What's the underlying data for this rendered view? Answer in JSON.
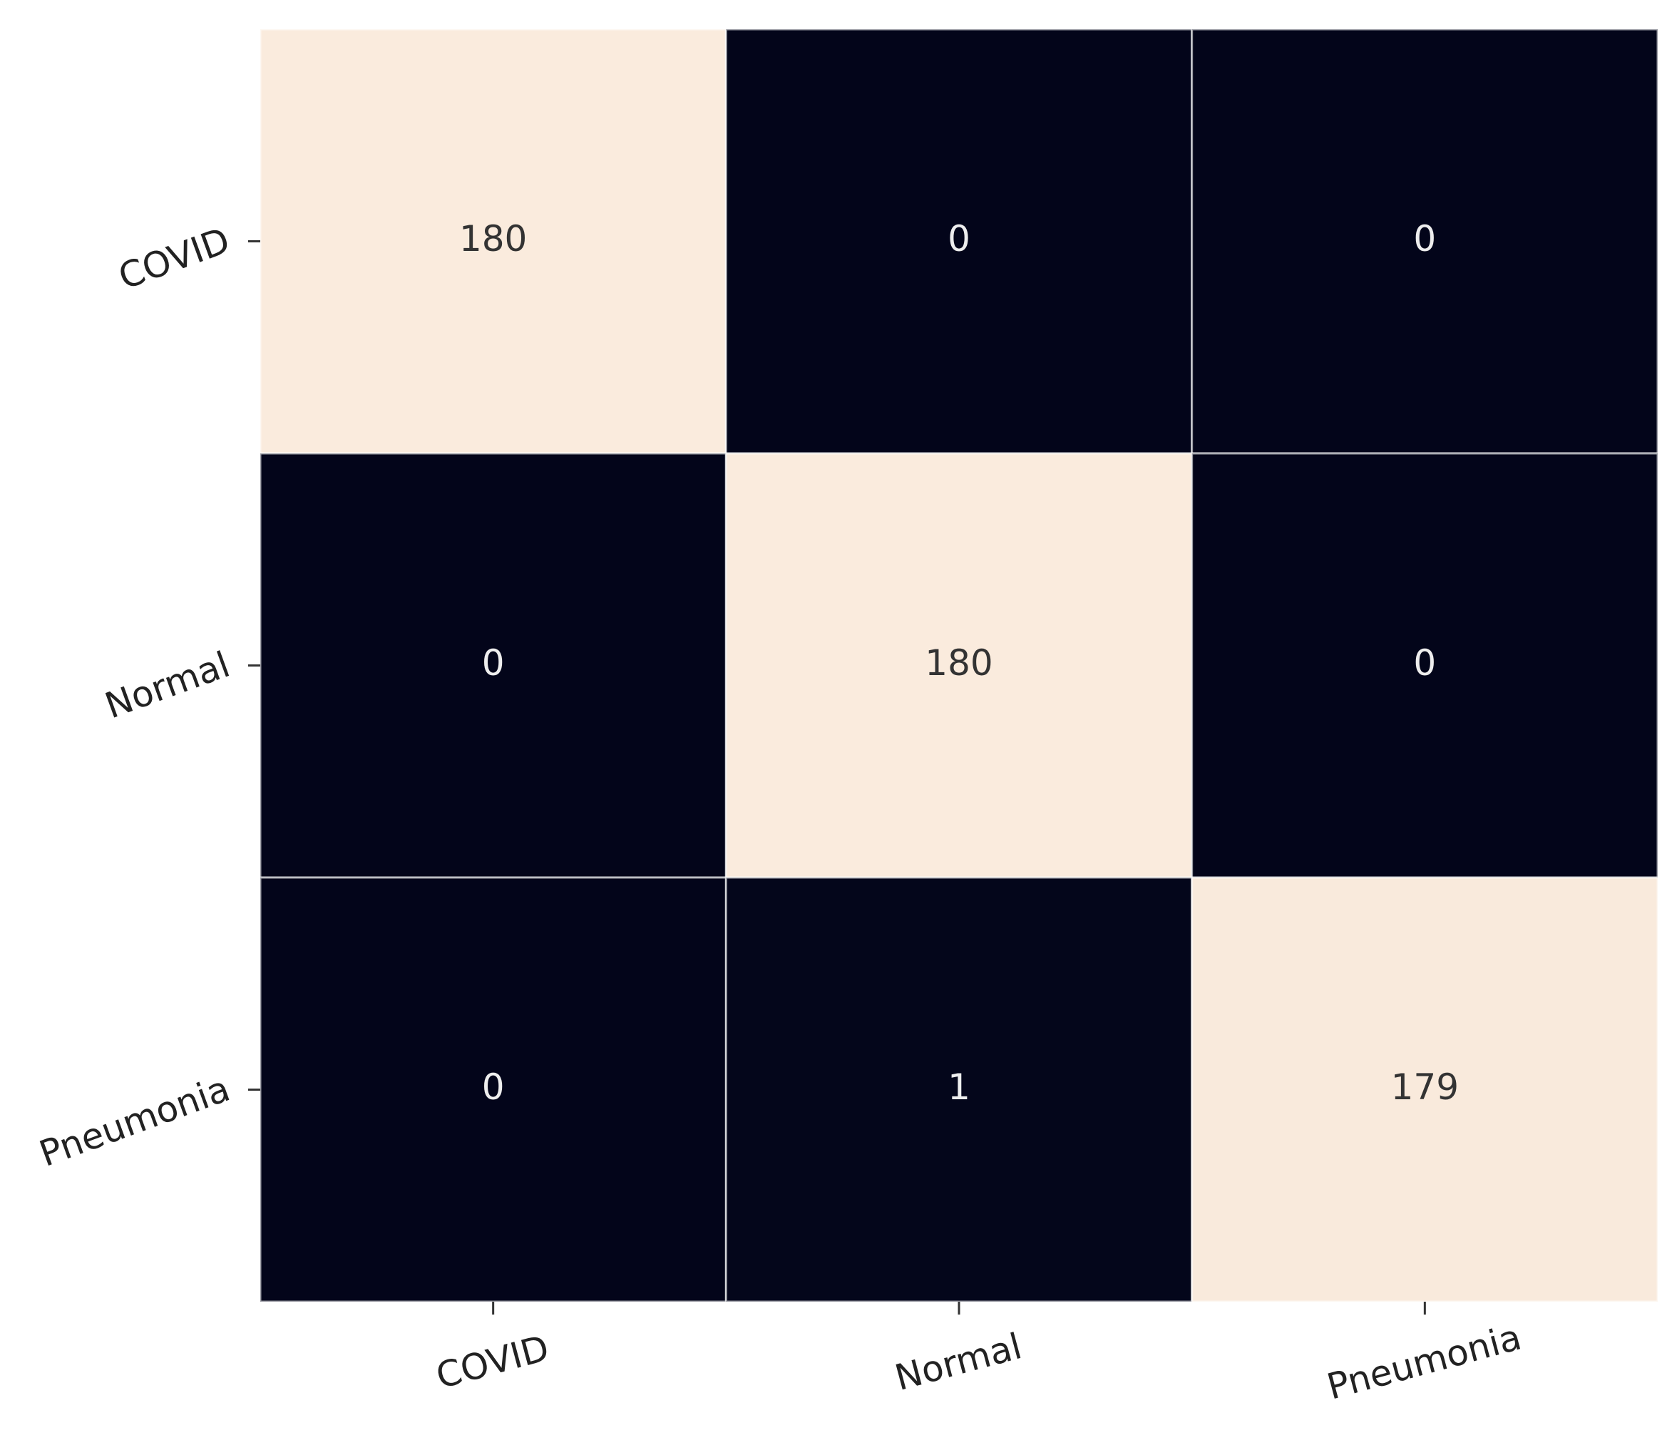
{
  "chart_data": {
    "type": "heatmap",
    "x_categories": [
      "COVID",
      "Normal",
      "Pneumonia"
    ],
    "y_categories": [
      "COVID",
      "Normal",
      "Pneumonia"
    ],
    "values": [
      [
        180,
        0,
        0
      ],
      [
        0,
        180,
        0
      ],
      [
        0,
        1,
        179
      ]
    ],
    "colors": [
      "#03051a",
      "#faebdd"
    ]
  }
}
